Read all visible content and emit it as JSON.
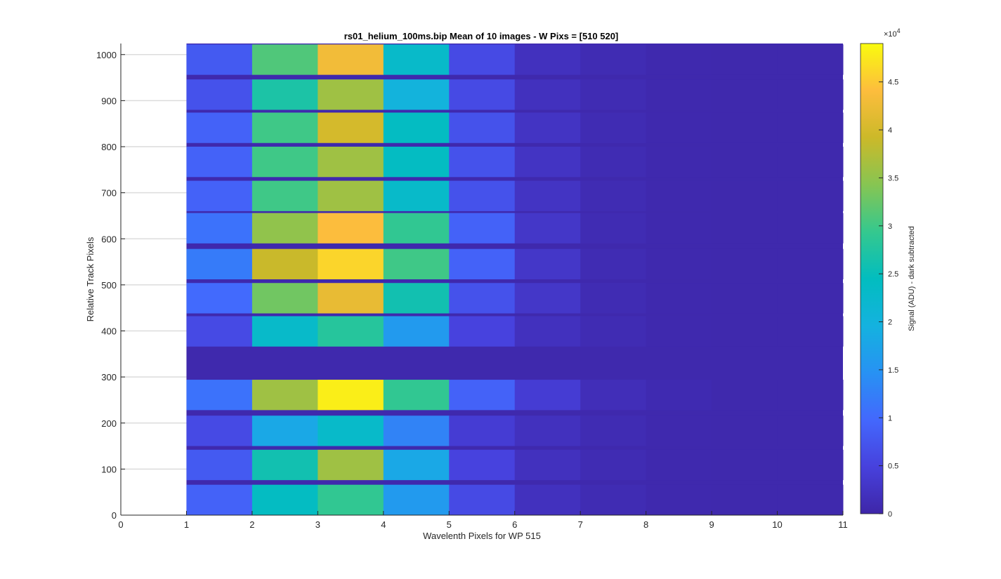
{
  "chart_data": {
    "type": "heatmap",
    "title": "rs01_helium_100ms.bip  Mean of 10 images - W Pixs = [510  520]",
    "xlabel": "Wavelenth Pixels for WP 515",
    "ylabel": "Relative Track Pixels",
    "xlim": [
      0,
      11
    ],
    "ylim": [
      0,
      1024
    ],
    "x_ticks": [
      "0",
      "1",
      "2",
      "3",
      "4",
      "5",
      "6",
      "7",
      "8",
      "9",
      "10",
      "11"
    ],
    "y_ticks": [
      "0",
      "100",
      "200",
      "300",
      "400",
      "500",
      "600",
      "700",
      "800",
      "900",
      "1000"
    ],
    "x_tick_values": [
      0,
      1,
      2,
      3,
      4,
      5,
      6,
      7,
      8,
      9,
      10,
      11
    ],
    "y_tick_values": [
      0,
      100,
      200,
      300,
      400,
      500,
      600,
      700,
      800,
      900,
      1000
    ],
    "grid": "y-major",
    "colormap": "parula",
    "colorbar": {
      "label": "Signal (ADU) - dark subtracted",
      "exponent_label": "×10",
      "exponent": "4",
      "range": [
        0,
        4.9
      ],
      "tick_values": [
        0,
        0.5,
        1,
        1.5,
        2,
        2.5,
        3,
        3.5,
        4,
        4.5
      ],
      "tick_labels": [
        "0",
        "0.5",
        "1",
        "1.5",
        "2",
        "2.5",
        "3",
        "3.5",
        "4",
        "4.5"
      ]
    },
    "columns": [
      1,
      2,
      3,
      4,
      5,
      6,
      7,
      8,
      9,
      10
    ],
    "background_value": 0.05,
    "tracks": [
      {
        "y0": 0,
        "y1": 66,
        "values": [
          0.9,
          2.4,
          2.9,
          1.6,
          0.6,
          0.2,
          0.1,
          0.06,
          0.05,
          0.05
        ]
      },
      {
        "y0": 76,
        "y1": 142,
        "values": [
          0.8,
          2.6,
          3.6,
          1.8,
          0.5,
          0.2,
          0.1,
          0.06,
          0.05,
          0.05
        ]
      },
      {
        "y0": 150,
        "y1": 216,
        "values": [
          0.6,
          1.8,
          2.3,
          1.3,
          0.4,
          0.2,
          0.1,
          0.06,
          0.05,
          0.05
        ]
      },
      {
        "y0": 228,
        "y1": 294,
        "values": [
          1.1,
          3.6,
          4.8,
          2.9,
          0.9,
          0.4,
          0.15,
          0.08,
          0.05,
          0.05
        ]
      },
      {
        "y0": 366,
        "y1": 432,
        "values": [
          0.6,
          2.3,
          2.8,
          1.6,
          0.5,
          0.2,
          0.1,
          0.06,
          0.05,
          0.05
        ]
      },
      {
        "y0": 438,
        "y1": 504,
        "values": [
          1.0,
          3.3,
          4.2,
          2.6,
          0.7,
          0.3,
          0.1,
          0.06,
          0.05,
          0.05
        ]
      },
      {
        "y0": 512,
        "y1": 578,
        "values": [
          1.2,
          3.9,
          4.6,
          3.0,
          0.9,
          0.3,
          0.1,
          0.06,
          0.05,
          0.05
        ]
      },
      {
        "y0": 590,
        "y1": 656,
        "values": [
          1.1,
          3.5,
          4.4,
          2.9,
          0.9,
          0.3,
          0.1,
          0.06,
          0.05,
          0.05
        ]
      },
      {
        "y0": 660,
        "y1": 726,
        "values": [
          0.9,
          3.0,
          3.6,
          2.3,
          0.7,
          0.25,
          0.1,
          0.06,
          0.05,
          0.05
        ]
      },
      {
        "y0": 734,
        "y1": 800,
        "values": [
          0.9,
          3.0,
          3.6,
          2.4,
          0.7,
          0.25,
          0.1,
          0.06,
          0.05,
          0.05
        ]
      },
      {
        "y0": 808,
        "y1": 874,
        "values": [
          0.9,
          3.0,
          4.0,
          2.4,
          0.7,
          0.25,
          0.1,
          0.06,
          0.05,
          0.05
        ]
      },
      {
        "y0": 880,
        "y1": 946,
        "values": [
          0.7,
          2.7,
          3.6,
          2.0,
          0.6,
          0.2,
          0.1,
          0.06,
          0.05,
          0.05
        ]
      },
      {
        "y0": 956,
        "y1": 1022,
        "values": [
          0.8,
          3.1,
          4.3,
          2.3,
          0.6,
          0.2,
          0.1,
          0.06,
          0.05,
          0.05
        ]
      }
    ]
  }
}
